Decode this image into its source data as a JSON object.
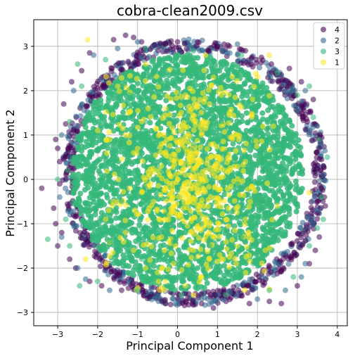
{
  "chart_data": {
    "type": "scatter",
    "title": "cobra-clean2009.csv",
    "xlabel": "Principal Component 1",
    "ylabel": "Principal Component 2",
    "xlim": [
      -3.6,
      4.25
    ],
    "ylim": [
      -3.3,
      3.6
    ],
    "x_ticks": [
      -3,
      -2,
      -1,
      0,
      1,
      2,
      3,
      4
    ],
    "y_ticks": [
      -3,
      -2,
      -1,
      0,
      1,
      2,
      3
    ],
    "grid": true,
    "legend_position": "top-right",
    "marker_alpha": 0.55,
    "series": [
      {
        "name": "4",
        "color": "#440154",
        "points": [
          [
            -3.4,
            -0.2
          ],
          [
            -3.05,
            0.9
          ],
          [
            -3.1,
            -0.65
          ],
          [
            -2.85,
            1.7
          ],
          [
            -2.65,
            2.2
          ],
          [
            -2.2,
            2.85
          ],
          [
            -1.6,
            3.15
          ],
          [
            -1.3,
            3.25
          ],
          [
            -0.9,
            3.1
          ],
          [
            -0.3,
            3.05
          ],
          [
            0.5,
            3.1
          ],
          [
            1.0,
            3.0
          ],
          [
            1.7,
            2.9
          ],
          [
            2.35,
            2.6
          ],
          [
            2.8,
            2.5
          ],
          [
            3.1,
            2.2
          ],
          [
            3.4,
            1.8
          ],
          [
            3.55,
            0.7
          ],
          [
            3.65,
            0.3
          ],
          [
            3.7,
            -0.6
          ],
          [
            3.55,
            -1.3
          ],
          [
            3.3,
            -1.9
          ],
          [
            3.0,
            -2.4
          ],
          [
            2.6,
            -2.8
          ],
          [
            1.8,
            -2.8
          ],
          [
            0.9,
            -2.9
          ],
          [
            0.2,
            -2.75
          ],
          [
            -0.7,
            -2.65
          ],
          [
            -1.4,
            -2.5
          ],
          [
            -2.2,
            -2.3
          ],
          [
            -2.7,
            -1.8
          ],
          [
            -3.0,
            -1.5
          ],
          [
            -3.05,
            -1.0
          ],
          [
            -2.95,
            -0.1
          ],
          [
            -2.95,
            0.4
          ],
          [
            -2.8,
            1.25
          ],
          [
            -2.4,
            2.45
          ],
          [
            -1.1,
            3.2
          ],
          [
            0.0,
            3.1
          ],
          [
            1.3,
            3.0
          ],
          [
            2.1,
            2.75
          ],
          [
            3.25,
            1.3
          ],
          [
            3.6,
            -0.2
          ],
          [
            3.45,
            -1.6
          ],
          [
            2.3,
            -2.75
          ],
          [
            -0.3,
            -2.8
          ],
          [
            -1.9,
            -2.4
          ],
          [
            -2.9,
            -1.2
          ],
          [
            -3.0,
            0.7
          ],
          [
            -2.55,
            -2.0
          ]
        ]
      },
      {
        "name": "2",
        "color": "#31688e",
        "points": [
          [
            -2.9,
            1.0
          ],
          [
            -2.6,
            2.0
          ],
          [
            -2.1,
            2.8
          ],
          [
            -1.0,
            3.1
          ],
          [
            0.3,
            3.0
          ],
          [
            1.5,
            3.05
          ],
          [
            2.6,
            2.35
          ],
          [
            3.2,
            2.0
          ],
          [
            3.5,
            1.2
          ],
          [
            3.65,
            0.1
          ],
          [
            3.4,
            -1.0
          ],
          [
            3.2,
            -1.9
          ],
          [
            2.7,
            -2.5
          ],
          [
            2.0,
            -2.7
          ],
          [
            0.6,
            -2.7
          ],
          [
            -0.5,
            -2.6
          ],
          [
            -1.7,
            -2.5
          ],
          [
            -2.5,
            -2.0
          ],
          [
            -2.9,
            -1.3
          ],
          [
            -2.95,
            -0.4
          ],
          [
            -2.7,
            0.5
          ],
          [
            2.4,
            2.5
          ],
          [
            -1.5,
            2.95
          ],
          [
            3.1,
            -2.2
          ],
          [
            -2.3,
            -2.25
          ]
        ]
      },
      {
        "name": "3",
        "color": "#35b779",
        "points": [
          [
            -3.25,
            -1.35
          ],
          [
            -2.8,
            -0.9
          ],
          [
            -2.75,
            0.2
          ],
          [
            -2.7,
            1.3
          ],
          [
            -2.4,
            2.1
          ],
          [
            -1.8,
            2.7
          ],
          [
            -0.8,
            2.95
          ],
          [
            0.4,
            2.9
          ],
          [
            1.6,
            2.8
          ],
          [
            2.5,
            2.4
          ],
          [
            3.0,
            1.9
          ],
          [
            3.4,
            1.4
          ],
          [
            3.55,
            0.9
          ],
          [
            3.6,
            -0.4
          ],
          [
            3.5,
            -1.1
          ],
          [
            3.3,
            -1.5
          ],
          [
            2.9,
            -2.2
          ],
          [
            2.3,
            -2.5
          ],
          [
            1.2,
            -2.6
          ],
          [
            0.1,
            -2.6
          ],
          [
            -1.0,
            -2.5
          ],
          [
            -2.0,
            -2.3
          ],
          [
            -2.45,
            -2.4
          ],
          [
            -2.7,
            -1.5
          ],
          [
            -2.6,
            -0.5
          ],
          [
            -2.2,
            0.3
          ],
          [
            -1.8,
            1.2
          ],
          [
            -1.2,
            1.9
          ],
          [
            -0.6,
            2.4
          ],
          [
            0.3,
            2.2
          ],
          [
            1.2,
            2.1
          ],
          [
            2.0,
            1.8
          ],
          [
            2.6,
            1.2
          ],
          [
            2.9,
            0.4
          ],
          [
            2.8,
            -0.5
          ],
          [
            2.5,
            -1.3
          ],
          [
            1.9,
            -1.9
          ],
          [
            1.0,
            -2.1
          ],
          [
            0.0,
            -2.0
          ],
          [
            -0.9,
            -1.8
          ],
          [
            -1.7,
            -1.4
          ],
          [
            -2.2,
            -0.7
          ],
          [
            -1.9,
            0.0
          ],
          [
            -1.4,
            0.8
          ],
          [
            -0.8,
            1.3
          ],
          [
            0.2,
            1.4
          ],
          [
            1.1,
            1.3
          ],
          [
            1.8,
            0.9
          ],
          [
            2.2,
            0.2
          ],
          [
            2.1,
            -0.7
          ],
          [
            1.6,
            -1.3
          ],
          [
            0.8,
            -1.5
          ],
          [
            -0.1,
            -1.4
          ],
          [
            -0.9,
            -1.1
          ],
          [
            -1.4,
            -0.5
          ],
          [
            -1.3,
            0.3
          ],
          [
            -0.6,
            0.7
          ],
          [
            0.4,
            0.8
          ],
          [
            1.2,
            0.6
          ],
          [
            1.5,
            -0.1
          ],
          [
            1.3,
            -0.8
          ],
          [
            0.6,
            -1.0
          ],
          [
            -0.3,
            -0.8
          ],
          [
            -0.8,
            -0.2
          ],
          [
            -0.5,
            0.3
          ],
          [
            0.5,
            0.2
          ],
          [
            0.9,
            -0.3
          ],
          [
            3.75,
            0.5
          ],
          [
            -2.5,
            2.6
          ],
          [
            3.3,
            2.1
          ],
          [
            -3.0,
            0.0
          ],
          [
            3.65,
            -0.9
          ]
        ]
      },
      {
        "name": "1",
        "color": "#fde725",
        "points": [
          [
            -2.25,
            3.15
          ],
          [
            -1.5,
            2.1
          ],
          [
            -1.3,
            1.0
          ],
          [
            -1.6,
            -0.5
          ],
          [
            -1.8,
            -0.9
          ],
          [
            -1.1,
            -1.6
          ],
          [
            -0.5,
            -2.1
          ],
          [
            -0.2,
            -0.8
          ],
          [
            -0.3,
            -0.9
          ],
          [
            -0.1,
            -0.6
          ],
          [
            0.1,
            -0.3
          ],
          [
            0.2,
            0.1
          ],
          [
            0.3,
            0.3
          ],
          [
            0.4,
            0.5
          ],
          [
            0.5,
            0.6
          ],
          [
            0.6,
            0.4
          ],
          [
            0.7,
            0.2
          ],
          [
            0.5,
            -0.2
          ],
          [
            0.3,
            -0.5
          ],
          [
            0.2,
            0.7
          ],
          [
            0.1,
            0.9
          ],
          [
            0.6,
            1.0
          ],
          [
            0.9,
            0.8
          ],
          [
            1.0,
            0.5
          ],
          [
            1.2,
            0.2
          ],
          [
            1.0,
            -0.6
          ],
          [
            0.8,
            -1.2
          ],
          [
            0.4,
            -1.6
          ],
          [
            -0.1,
            -1.9
          ],
          [
            -0.4,
            -1.3
          ],
          [
            -0.6,
            -0.5
          ],
          [
            -0.7,
            0.1
          ],
          [
            -0.4,
            0.8
          ],
          [
            -0.9,
            1.3
          ],
          [
            -0.3,
            1.6
          ],
          [
            0.2,
            1.9
          ],
          [
            0.8,
            1.7
          ],
          [
            1.1,
            1.9
          ],
          [
            0.9,
            2.3
          ],
          [
            1.3,
            1.5
          ],
          [
            1.5,
            1.0
          ],
          [
            1.7,
            0.4
          ],
          [
            1.9,
            -0.2
          ],
          [
            1.7,
            -0.9
          ],
          [
            1.5,
            -1.5
          ],
          [
            1.1,
            -1.8
          ],
          [
            0.6,
            -2.2
          ],
          [
            0.2,
            -2.4
          ],
          [
            -0.3,
            -2.3
          ],
          [
            -0.8,
            -2.0
          ],
          [
            -1.3,
            -1.2
          ],
          [
            -1.2,
            -0.2
          ],
          [
            -1.1,
            0.6
          ],
          [
            2.4,
            1.2
          ],
          [
            2.5,
            -0.6
          ],
          [
            2.2,
            -1.6
          ],
          [
            -2.0,
            1.1
          ],
          [
            -2.3,
            -1.8
          ],
          [
            -0.8,
            2.6
          ],
          [
            0.7,
            2.8
          ],
          [
            2.3,
            2.8
          ],
          [
            3.3,
            -0.3
          ],
          [
            0.0,
            0.0
          ],
          [
            0.35,
            0.05
          ],
          [
            -0.05,
            0.45
          ],
          [
            0.25,
            -1.05
          ],
          [
            0.55,
            -0.75
          ],
          [
            0.15,
            0.35
          ],
          [
            0.45,
            0.25
          ],
          [
            0.65,
            -0.05
          ]
        ]
      }
    ]
  }
}
